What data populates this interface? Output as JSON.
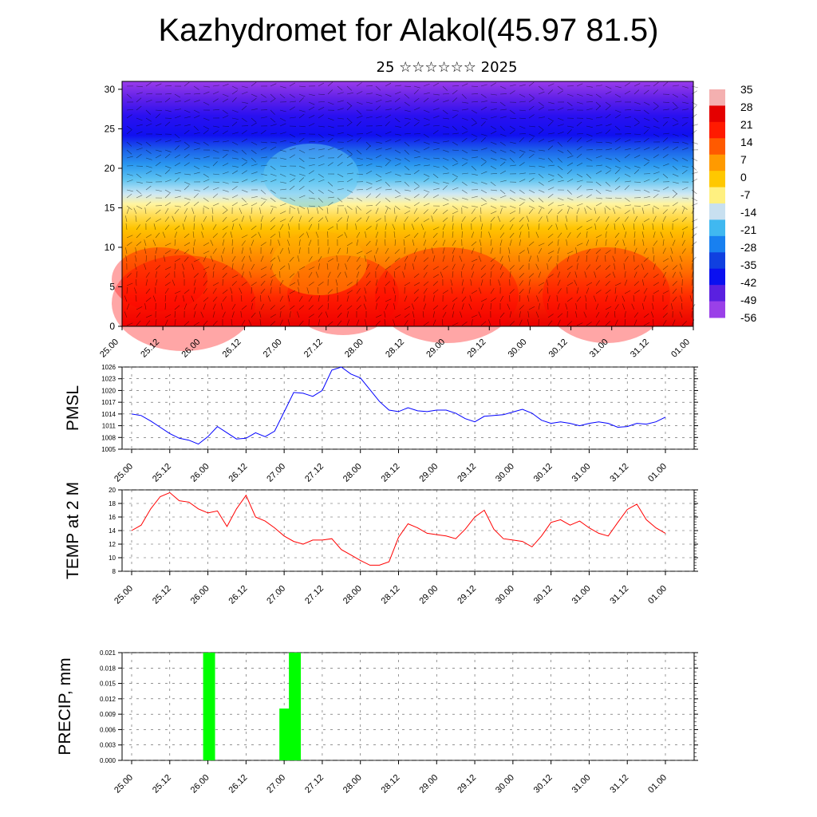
{
  "header": {
    "title": "Kazhydromet for Alakol(45.97 81.5)",
    "subtitle": "25 ☆☆☆☆☆☆ 2025"
  },
  "x_tick_labels": [
    "25.00",
    "25.12",
    "26.00",
    "26.12",
    "27.00",
    "27.12",
    "28.00",
    "28.12",
    "29.00",
    "29.12",
    "30.00",
    "30.12",
    "31.00",
    "31.12",
    "01.00"
  ],
  "chart_data": [
    {
      "type": "heatmap",
      "title": "",
      "x_ticks": [
        "25.00",
        "25.12",
        "26.00",
        "26.12",
        "27.00",
        "27.12",
        "28.00",
        "28.12",
        "29.00",
        "29.12",
        "30.00",
        "30.12",
        "31.00",
        "31.12",
        "01.00"
      ],
      "y_ticks": [
        "0",
        "5",
        "10",
        "15",
        "20",
        "25",
        "30"
      ],
      "ylim": [
        0,
        31
      ],
      "colorbar": {
        "labels": [
          "35",
          "28",
          "21",
          "14",
          "7",
          "0",
          "-7",
          "-14",
          "-21",
          "-28",
          "-35",
          "-42",
          "-49",
          "-56"
        ],
        "colors": [
          "#f4b0b0",
          "#e40000",
          "#ff1a00",
          "#ff5a00",
          "#ff9a00",
          "#ffc800",
          "#fff080",
          "#c8e0f0",
          "#40b8f0",
          "#1880f0",
          "#1040e0",
          "#0a10f0",
          "#5a20e0",
          "#9a40e8"
        ]
      }
    },
    {
      "type": "line",
      "ylabel": "PMSL",
      "y_ticks": [
        "1005",
        "1008",
        "1011",
        "1014",
        "1017",
        "1020",
        "1023",
        "1026"
      ],
      "ylim": [
        1005,
        1026
      ],
      "color": "#0000ff",
      "x": [
        0,
        3,
        6,
        9,
        12,
        15,
        18,
        21,
        24,
        27,
        30,
        33,
        36,
        39,
        42,
        45,
        48,
        51,
        54,
        57,
        60,
        63,
        66,
        69,
        72,
        75,
        78,
        81,
        84,
        87,
        90,
        93,
        96,
        99,
        102,
        105,
        108,
        111,
        114,
        117,
        120,
        123,
        126,
        129,
        132,
        135,
        138,
        141,
        144,
        147,
        150,
        153,
        156,
        159,
        162,
        165,
        168
      ],
      "values": [
        1014.0,
        1013.6,
        1012.2,
        1010.6,
        1009.0,
        1007.8,
        1007.3,
        1006.3,
        1008.2,
        1010.8,
        1009.2,
        1007.6,
        1007.8,
        1009.2,
        1008.2,
        1009.6,
        1014.5,
        1019.5,
        1019.3,
        1018.5,
        1020.0,
        1025.2,
        1026.0,
        1024.2,
        1023.2,
        1020.2,
        1017.2,
        1015.0,
        1014.6,
        1015.6,
        1014.8,
        1014.6,
        1015.0,
        1015.0,
        1014.2,
        1012.8,
        1012.0,
        1013.4,
        1013.6,
        1013.8,
        1014.5,
        1015.2,
        1014.2,
        1012.4,
        1011.6,
        1012.0,
        1011.6,
        1011.0,
        1011.6,
        1012.0,
        1011.6,
        1010.6,
        1010.8,
        1011.6,
        1011.4,
        1012.0,
        1013.2
      ]
    },
    {
      "type": "line",
      "ylabel": "TEMP at 2 M",
      "y_ticks": [
        "8",
        "10",
        "12",
        "14",
        "16",
        "18",
        "20"
      ],
      "ylim": [
        8,
        20
      ],
      "color": "#ff0000",
      "x": [
        0,
        3,
        6,
        9,
        12,
        15,
        18,
        21,
        24,
        27,
        30,
        33,
        36,
        39,
        42,
        45,
        48,
        51,
        54,
        57,
        60,
        63,
        66,
        69,
        72,
        75,
        78,
        81,
        84,
        87,
        90,
        93,
        96,
        99,
        102,
        105,
        108,
        111,
        114,
        117,
        120,
        123,
        126,
        129,
        132,
        135,
        138,
        141,
        144,
        147,
        150,
        153,
        156,
        159,
        162,
        165,
        168
      ],
      "values": [
        14.0,
        14.8,
        17.2,
        19.0,
        19.6,
        18.4,
        18.2,
        17.2,
        16.6,
        16.9,
        14.6,
        17.2,
        19.2,
        16.0,
        15.4,
        14.4,
        13.2,
        12.4,
        12.0,
        12.6,
        12.6,
        12.8,
        11.2,
        10.4,
        9.6,
        8.9,
        8.9,
        9.4,
        13.0,
        15.0,
        14.4,
        13.6,
        13.4,
        13.2,
        12.8,
        14.2,
        16.0,
        17.0,
        14.2,
        12.8,
        12.6,
        12.4,
        11.6,
        13.2,
        15.2,
        15.6,
        14.8,
        15.4,
        14.4,
        13.6,
        13.2,
        15.2,
        17.1,
        17.9,
        15.6,
        14.4,
        13.6
      ]
    },
    {
      "type": "bar",
      "ylabel": "PRECIP, mm",
      "y_ticks": [
        "0.000",
        "0.003",
        "0.006",
        "0.009",
        "0.012",
        "0.015",
        "0.018",
        "0.021"
      ],
      "ylim": [
        0,
        0.021
      ],
      "color": "#00ff00",
      "x": [
        24,
        48,
        51
      ],
      "values": [
        0.021,
        0.0101,
        0.021
      ]
    }
  ]
}
